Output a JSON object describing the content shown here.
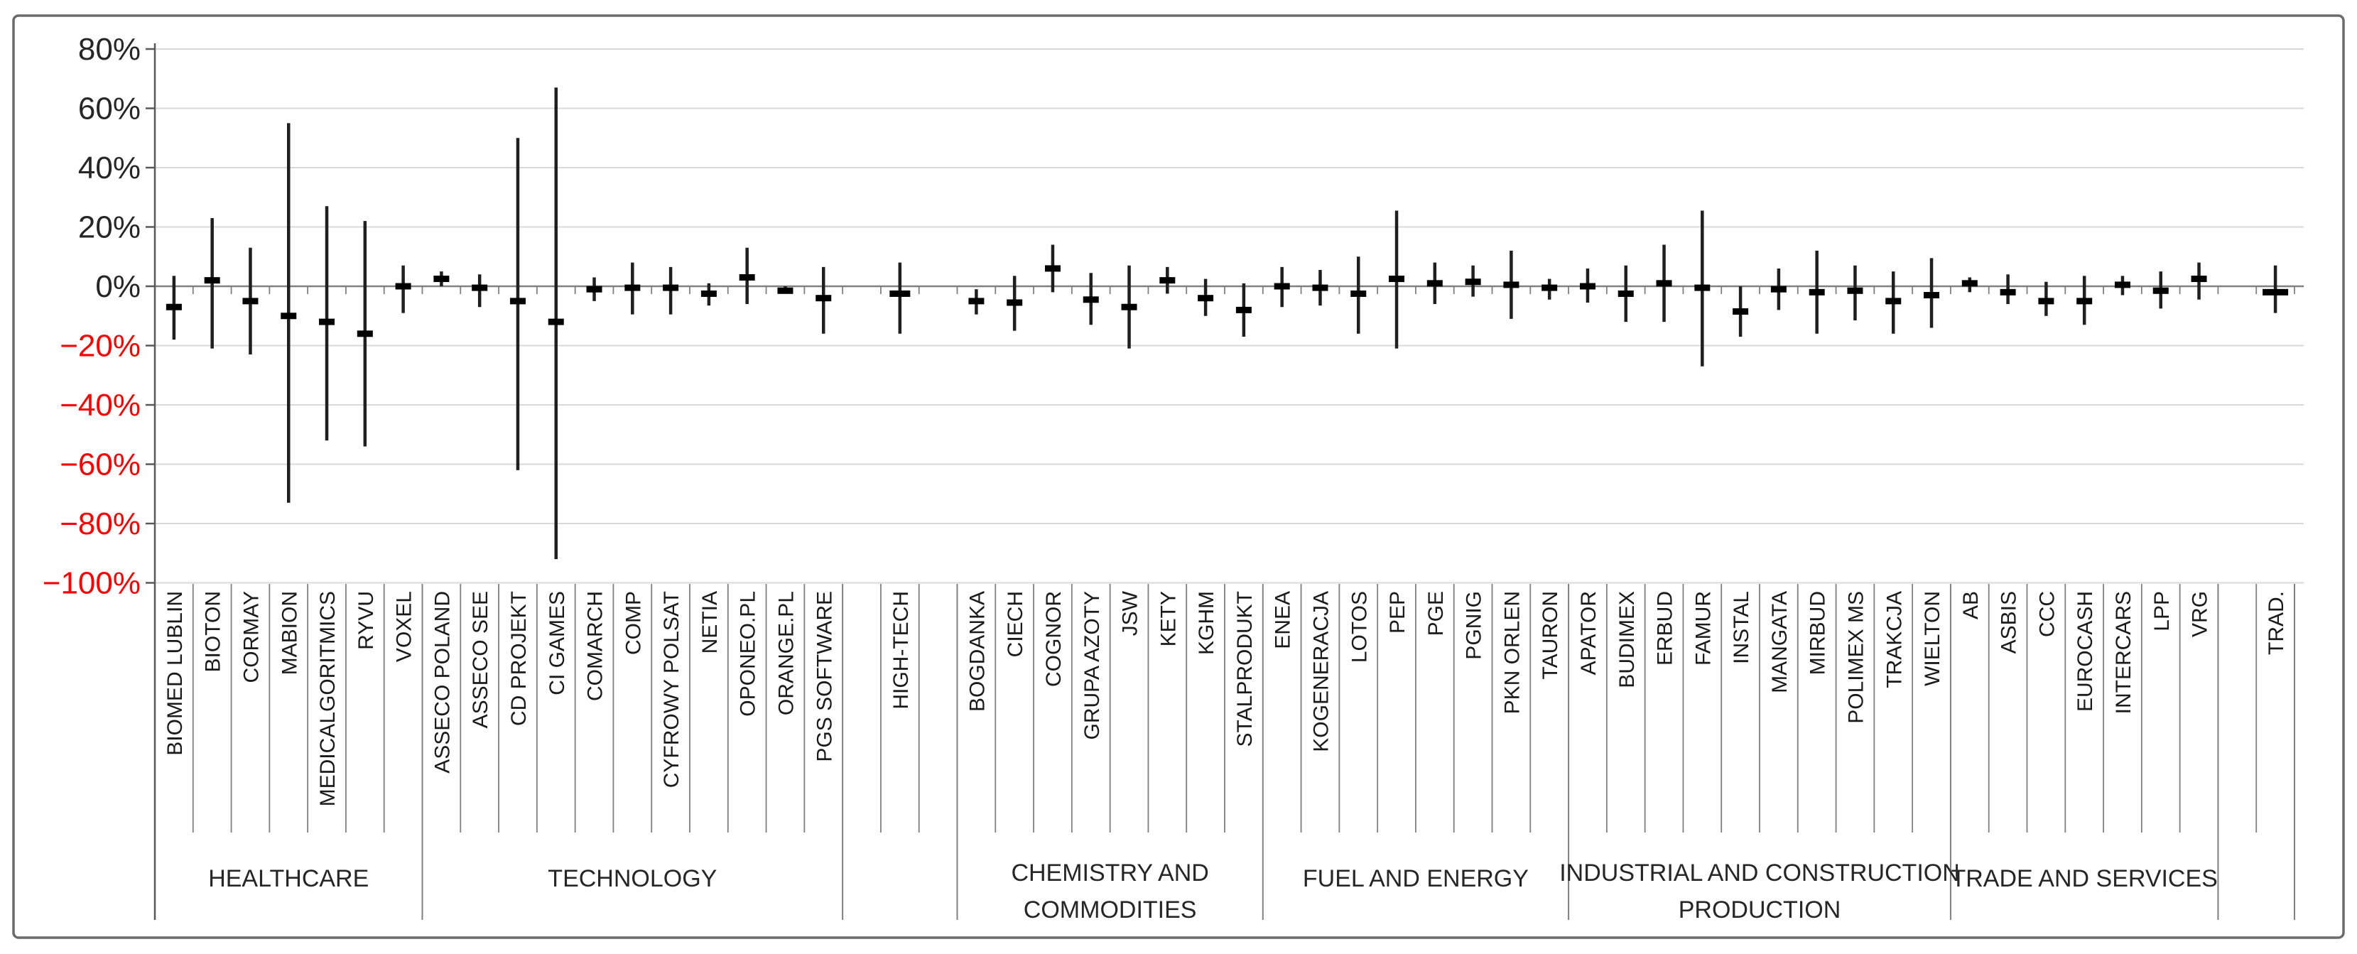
{
  "chart_data": {
    "type": "hilo",
    "title": "",
    "subtitle": "",
    "unit": "%",
    "legend": null,
    "grid": true,
    "y_axis": {
      "min": -100,
      "max": 80,
      "step": 20,
      "ticks": [
        {
          "v": 80,
          "label": "80%"
        },
        {
          "v": 60,
          "label": "60%"
        },
        {
          "v": 40,
          "label": "40%"
        },
        {
          "v": 20,
          "label": "20%"
        },
        {
          "v": 0,
          "label": "0%"
        },
        {
          "v": -20,
          "label": "−20%"
        },
        {
          "v": -40,
          "label": "−40%"
        },
        {
          "v": -60,
          "label": "−60%"
        },
        {
          "v": -80,
          "label": "−80%"
        },
        {
          "v": -100,
          "label": "−100%"
        }
      ]
    },
    "sections": [
      {
        "caption": "HEALTHCARE",
        "items": [
          {
            "label": "BIOMED LUBLIN",
            "high": 3.5,
            "mid": -7,
            "low": -18
          },
          {
            "label": "BIOTON",
            "high": 23,
            "mid": 2,
            "low": -21
          },
          {
            "label": "CORMAY",
            "high": 13,
            "mid": -5,
            "low": -23
          },
          {
            "label": "MABION",
            "high": 55,
            "mid": -10,
            "low": -73
          },
          {
            "label": "MEDICALGORITMICS",
            "high": 27,
            "mid": -12,
            "low": -52
          },
          {
            "label": "RYVU",
            "high": 22,
            "mid": -16,
            "low": -54
          },
          {
            "label": "VOXEL",
            "high": 7,
            "mid": 0,
            "low": -9
          }
        ]
      },
      {
        "caption": "TECHNOLOGY",
        "items": [
          {
            "label": "ASSECO POLAND",
            "high": 5,
            "mid": 2.5,
            "low": 0
          },
          {
            "label": "ASSECO SEE",
            "high": 4,
            "mid": -0.5,
            "low": -7
          },
          {
            "label": "CD PROJEKT",
            "high": 50,
            "mid": -5,
            "low": -62
          },
          {
            "label": "CI GAMES",
            "high": 67,
            "mid": -12,
            "low": -92
          },
          {
            "label": "COMARCH",
            "high": 3,
            "mid": -1,
            "low": -5
          },
          {
            "label": "COMP",
            "high": 8,
            "mid": -0.5,
            "low": -9.5
          },
          {
            "label": "CYFROWY POLSAT",
            "high": 6.5,
            "mid": -0.5,
            "low": -9.5
          },
          {
            "label": "NETIA",
            "high": 1,
            "mid": -2.5,
            "low": -6.5
          },
          {
            "label": "OPONEO.PL",
            "high": 13,
            "mid": 3,
            "low": -6
          },
          {
            "label": "ORANGE.PL",
            "high": 0,
            "mid": -1.5,
            "low": -2.5
          },
          {
            "label": "PGS SOFTWARE",
            "high": 6.5,
            "mid": -4,
            "low": -16
          }
        ]
      },
      {
        "caption": "",
        "items": [
          {
            "empty": true
          },
          {
            "label": "HIGH-TECH",
            "high": 8,
            "mid": -2.5,
            "low": -16,
            "wide": true
          },
          {
            "empty": true
          }
        ]
      },
      {
        "caption": "CHEMISTRY AND\nCOMMODITIES",
        "items": [
          {
            "label": "BOGDANKA",
            "high": -1,
            "mid": -5,
            "low": -9.5
          },
          {
            "label": "CIECH",
            "high": 3.5,
            "mid": -5.5,
            "low": -15
          },
          {
            "label": "COGNOR",
            "high": 14,
            "mid": 6,
            "low": -2
          },
          {
            "label": "GRUPA AZOTY",
            "high": 4.5,
            "mid": -4.5,
            "low": -13
          },
          {
            "label": "JSW",
            "high": 7,
            "mid": -7,
            "low": -21
          },
          {
            "label": "KETY",
            "high": 6.5,
            "mid": 2,
            "low": -2.5
          },
          {
            "label": "KGHM",
            "high": 2.5,
            "mid": -4,
            "low": -10
          },
          {
            "label": "STALPRODUKT",
            "high": 1,
            "mid": -8,
            "low": -17
          }
        ]
      },
      {
        "caption": "FUEL AND ENERGY",
        "items": [
          {
            "label": "ENEA",
            "high": 6.5,
            "mid": 0,
            "low": -7
          },
          {
            "label": "KOGENERACJA",
            "high": 5.5,
            "mid": -0.5,
            "low": -6.5
          },
          {
            "label": "LOTOS",
            "high": 10,
            "mid": -2.5,
            "low": -16
          },
          {
            "label": "PEP",
            "high": 25.5,
            "mid": 2.5,
            "low": -21
          },
          {
            "label": "PGE",
            "high": 8,
            "mid": 1,
            "low": -6
          },
          {
            "label": "PGNIG",
            "high": 7,
            "mid": 1.5,
            "low": -3.5
          },
          {
            "label": "PKN ORLEN",
            "high": 12,
            "mid": 0.5,
            "low": -11
          },
          {
            "label": "TAURON",
            "high": 2.5,
            "mid": -0.5,
            "low": -4.5
          }
        ]
      },
      {
        "caption": "INDUSTRIAL AND CONSTRUCTION\nPRODUCTION",
        "items": [
          {
            "label": "APATOR",
            "high": 6,
            "mid": 0,
            "low": -5.5
          },
          {
            "label": "BUDIMEX",
            "high": 7,
            "mid": -2.5,
            "low": -12
          },
          {
            "label": "ERBUD",
            "high": 14,
            "mid": 1,
            "low": -12
          },
          {
            "label": "FAMUR",
            "high": 25.5,
            "mid": -0.5,
            "low": -27
          },
          {
            "label": "INSTAL",
            "high": 0,
            "mid": -8.5,
            "low": -17
          },
          {
            "label": "MANGATA",
            "high": 6,
            "mid": -1,
            "low": -8
          },
          {
            "label": "MIRBUD",
            "high": 12,
            "mid": -2,
            "low": -16
          },
          {
            "label": "POLIMEX MS",
            "high": 7,
            "mid": -1.5,
            "low": -11.5
          },
          {
            "label": "TRAKCJA",
            "high": 5,
            "mid": -5,
            "low": -16
          },
          {
            "label": "WIELTON",
            "high": 9.5,
            "mid": -3,
            "low": -14
          }
        ]
      },
      {
        "caption": "TRADE AND SERVICES",
        "items": [
          {
            "label": "AB",
            "high": 3,
            "mid": 1,
            "low": -2
          },
          {
            "label": "ASBIS",
            "high": 4,
            "mid": -2,
            "low": -6
          },
          {
            "label": "CCC",
            "high": 1.5,
            "mid": -5,
            "low": -10
          },
          {
            "label": "EUROCASH",
            "high": 3.5,
            "mid": -5,
            "low": -13
          },
          {
            "label": "INTERCARS",
            "high": 3.5,
            "mid": 0.5,
            "low": -3
          },
          {
            "label": "LPP",
            "high": 5,
            "mid": -1.5,
            "low": -7.5
          },
          {
            "label": "VRG",
            "high": 8,
            "mid": 2.5,
            "low": -4.5
          }
        ]
      },
      {
        "caption": "",
        "items": [
          {
            "empty": true
          },
          {
            "label": "TRAD.",
            "high": 7,
            "mid": -2,
            "low": -9,
            "wide": true
          }
        ]
      }
    ],
    "colors": {
      "background": "#FFFFFF",
      "border": "#6B6B6B",
      "gridline": "#D9D9D9",
      "zero_line": "#808080",
      "axis_line": "#595959",
      "divider": "#808080",
      "whisker": "#1F1F1F",
      "marker": "#000000",
      "tick_negative": "#FF0000",
      "tick_positive": "#262626",
      "label_text": "#1A1A1A",
      "caption_text": "#262626"
    }
  }
}
